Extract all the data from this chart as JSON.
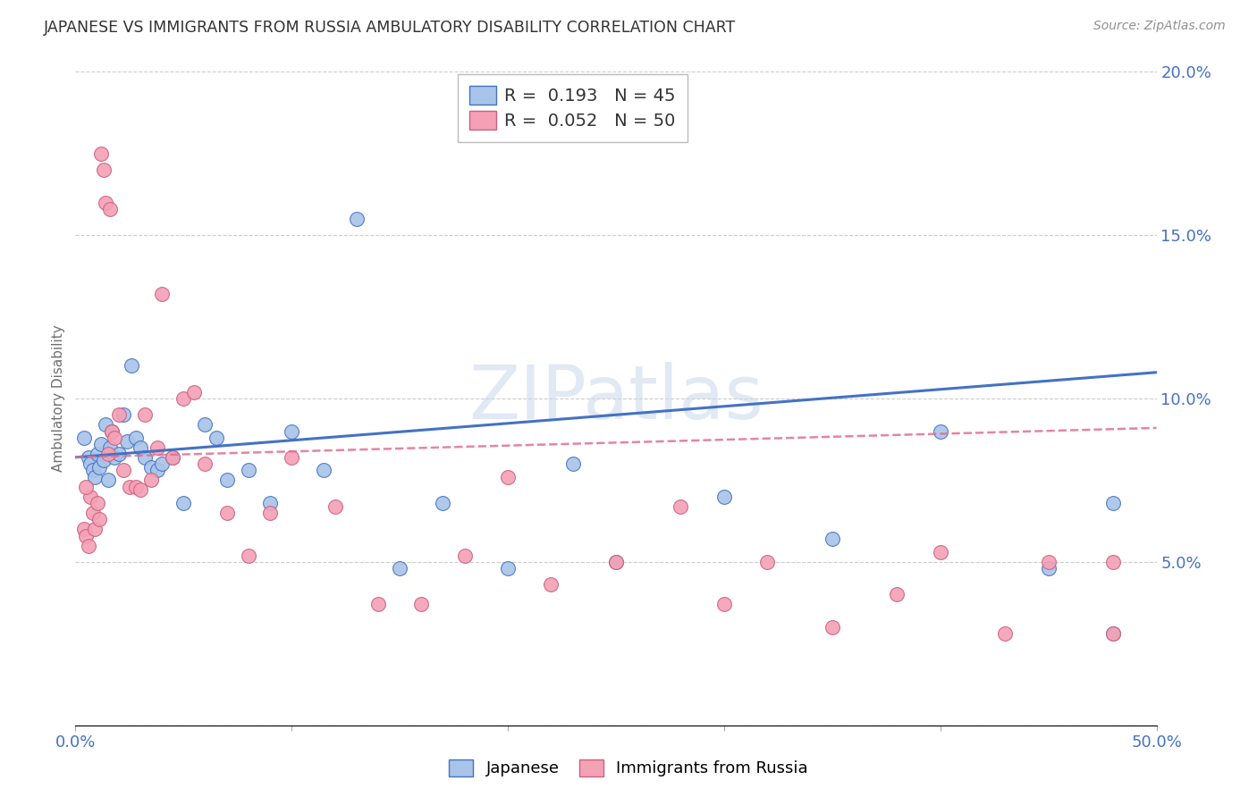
{
  "title": "JAPANESE VS IMMIGRANTS FROM RUSSIA AMBULATORY DISABILITY CORRELATION CHART",
  "source": "Source: ZipAtlas.com",
  "ylabel": "Ambulatory Disability",
  "watermark": "ZIPatlas",
  "xlim": [
    0.0,
    0.5
  ],
  "ylim": [
    0.0,
    0.2
  ],
  "xticks": [
    0.0,
    0.1,
    0.2,
    0.3,
    0.4,
    0.5
  ],
  "yticks": [
    0.0,
    0.05,
    0.1,
    0.15,
    0.2
  ],
  "ytick_labels": [
    "",
    "5.0%",
    "10.0%",
    "15.0%",
    "20.0%"
  ],
  "xtick_labels": [
    "0.0%",
    "",
    "",
    "",
    "",
    "50.0%"
  ],
  "legend_label1": "Japanese",
  "legend_label2": "Immigrants from Russia",
  "color_japanese": "#a8c4e8",
  "color_russia": "#f4a0b5",
  "color_line_japanese": "#4472C4",
  "color_line_russia": "#e07090",
  "background_color": "#ffffff",
  "grid_color": "#cccccc",
  "axis_label_color": "#4472C4",
  "title_color": "#333333",
  "japanese_x": [
    0.004,
    0.006,
    0.007,
    0.008,
    0.009,
    0.01,
    0.011,
    0.012,
    0.013,
    0.014,
    0.015,
    0.016,
    0.017,
    0.018,
    0.02,
    0.022,
    0.024,
    0.026,
    0.028,
    0.03,
    0.032,
    0.035,
    0.038,
    0.04,
    0.045,
    0.05,
    0.06,
    0.065,
    0.07,
    0.08,
    0.09,
    0.1,
    0.115,
    0.13,
    0.15,
    0.17,
    0.2,
    0.23,
    0.25,
    0.3,
    0.35,
    0.4,
    0.45,
    0.48,
    0.48
  ],
  "japanese_y": [
    0.088,
    0.082,
    0.08,
    0.078,
    0.076,
    0.083,
    0.079,
    0.086,
    0.081,
    0.092,
    0.075,
    0.085,
    0.09,
    0.082,
    0.083,
    0.095,
    0.087,
    0.11,
    0.088,
    0.085,
    0.082,
    0.079,
    0.078,
    0.08,
    0.082,
    0.068,
    0.092,
    0.088,
    0.075,
    0.078,
    0.068,
    0.09,
    0.078,
    0.155,
    0.048,
    0.068,
    0.048,
    0.08,
    0.05,
    0.07,
    0.057,
    0.09,
    0.048,
    0.068,
    0.028
  ],
  "russia_x": [
    0.004,
    0.005,
    0.006,
    0.007,
    0.008,
    0.009,
    0.01,
    0.011,
    0.012,
    0.013,
    0.014,
    0.015,
    0.016,
    0.017,
    0.018,
    0.02,
    0.022,
    0.025,
    0.028,
    0.03,
    0.032,
    0.035,
    0.038,
    0.04,
    0.045,
    0.05,
    0.055,
    0.06,
    0.07,
    0.08,
    0.09,
    0.1,
    0.12,
    0.14,
    0.16,
    0.18,
    0.2,
    0.22,
    0.25,
    0.28,
    0.3,
    0.32,
    0.35,
    0.38,
    0.4,
    0.43,
    0.45,
    0.48,
    0.48,
    0.005
  ],
  "russia_y": [
    0.06,
    0.058,
    0.055,
    0.07,
    0.065,
    0.06,
    0.068,
    0.063,
    0.175,
    0.17,
    0.16,
    0.083,
    0.158,
    0.09,
    0.088,
    0.095,
    0.078,
    0.073,
    0.073,
    0.072,
    0.095,
    0.075,
    0.085,
    0.132,
    0.082,
    0.1,
    0.102,
    0.08,
    0.065,
    0.052,
    0.065,
    0.082,
    0.067,
    0.037,
    0.037,
    0.052,
    0.076,
    0.043,
    0.05,
    0.067,
    0.037,
    0.05,
    0.03,
    0.04,
    0.053,
    0.028,
    0.05,
    0.028,
    0.05,
    0.073
  ]
}
